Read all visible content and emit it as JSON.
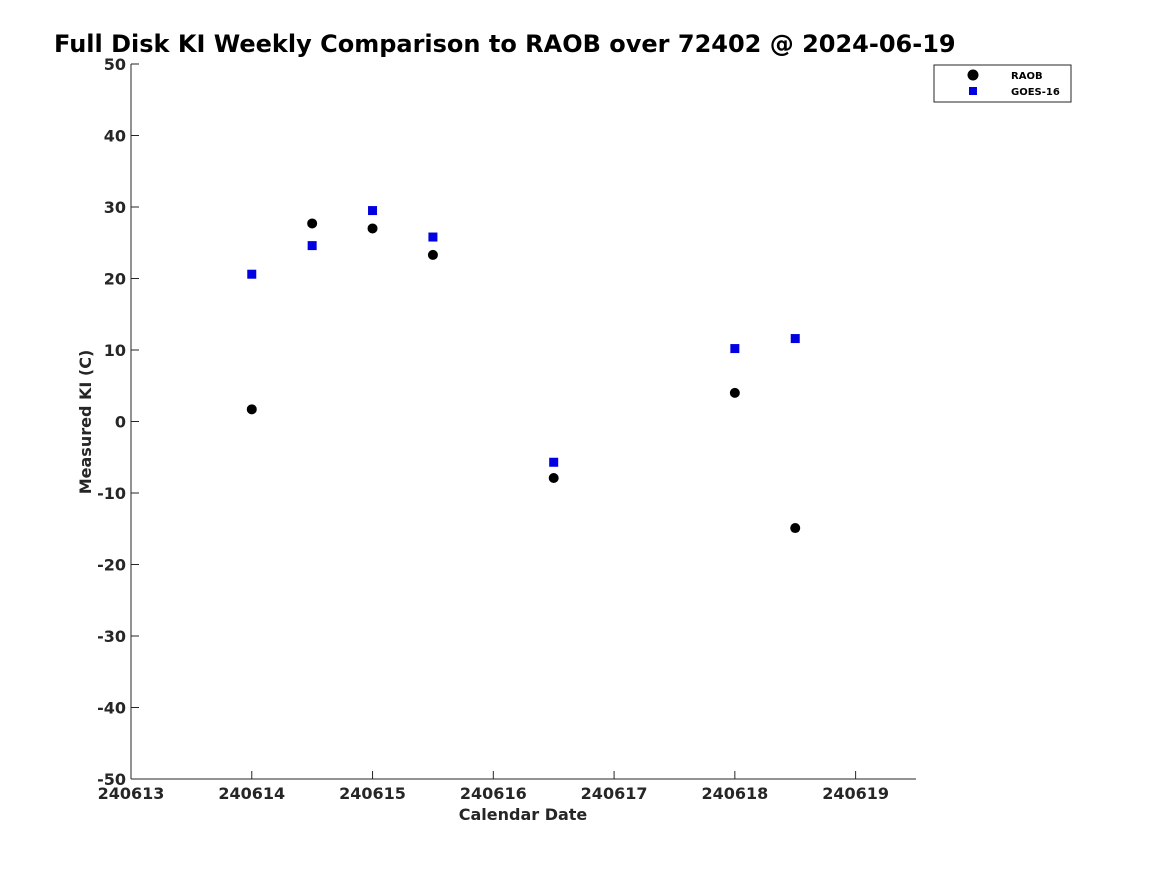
{
  "chart_data": {
    "type": "scatter",
    "title": "Full Disk KI Weekly Comparison to RAOB over 72402 @ 2024-06-19",
    "xlabel": "Calendar Date",
    "ylabel": "Measured KI (C)",
    "xlim": [
      240613,
      240619.5
    ],
    "ylim": [
      -50,
      50
    ],
    "xticks": [
      240613,
      240614,
      240615,
      240616,
      240617,
      240618,
      240619
    ],
    "yticks": [
      -50,
      -40,
      -30,
      -20,
      -10,
      0,
      10,
      20,
      30,
      40,
      50
    ],
    "grid": false,
    "legend": "top-right",
    "series": [
      {
        "name": "RAOB",
        "marker": "circle",
        "color": "#000000",
        "points": [
          {
            "x": 240614.0,
            "y": 1.7
          },
          {
            "x": 240614.5,
            "y": 27.7
          },
          {
            "x": 240615.0,
            "y": 27.0
          },
          {
            "x": 240615.5,
            "y": 23.3
          },
          {
            "x": 240616.5,
            "y": -7.9
          },
          {
            "x": 240618.0,
            "y": 4.0
          },
          {
            "x": 240618.5,
            "y": -14.9
          }
        ]
      },
      {
        "name": "GOES-16",
        "marker": "square",
        "color": "#0000e0",
        "points": [
          {
            "x": 240614.0,
            "y": 20.6
          },
          {
            "x": 240614.5,
            "y": 24.6
          },
          {
            "x": 240615.0,
            "y": 29.5
          },
          {
            "x": 240615.5,
            "y": 25.8
          },
          {
            "x": 240616.5,
            "y": -5.7
          },
          {
            "x": 240618.0,
            "y": 10.2
          },
          {
            "x": 240618.5,
            "y": 11.6
          }
        ]
      }
    ]
  }
}
